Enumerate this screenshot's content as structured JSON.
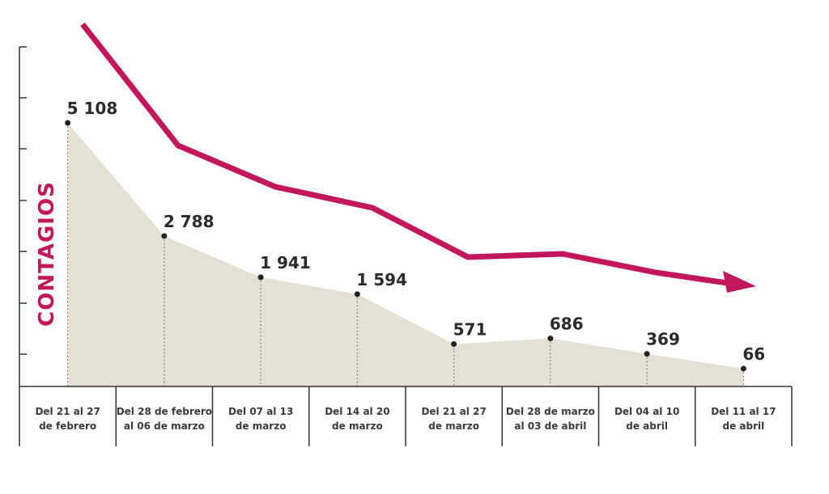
{
  "chart_data": {
    "type": "area",
    "ylabel": "CONTAGIOS",
    "categories": [
      [
        "Del 21 al 27",
        "de febrero"
      ],
      [
        "Del 28 de febrero",
        "al 06 de marzo"
      ],
      [
        "Del 07 al 13",
        "de marzo"
      ],
      [
        "Del 14 al 20",
        "de marzo"
      ],
      [
        "Del 21 al 27",
        "de marzo"
      ],
      [
        "Del 28 de marzo",
        "al 03 de abril"
      ],
      [
        "Del 04 al 10",
        "de abril"
      ],
      [
        "Del 11 al 17",
        "de abril"
      ]
    ],
    "values": [
      5108,
      2788,
      1941,
      1594,
      571,
      686,
      369,
      66
    ],
    "value_labels": [
      "5 108",
      "2 788",
      "1 941",
      "1 594",
      "571",
      "686",
      "369",
      "66"
    ],
    "ylim": [
      -300,
      6900
    ],
    "trend_arrow": true,
    "colors": {
      "area": "#e4e1d2",
      "trend": "#c2185b",
      "ylabel": "#c2185b",
      "text": "#2b2b2b",
      "axis": "#333333"
    }
  }
}
